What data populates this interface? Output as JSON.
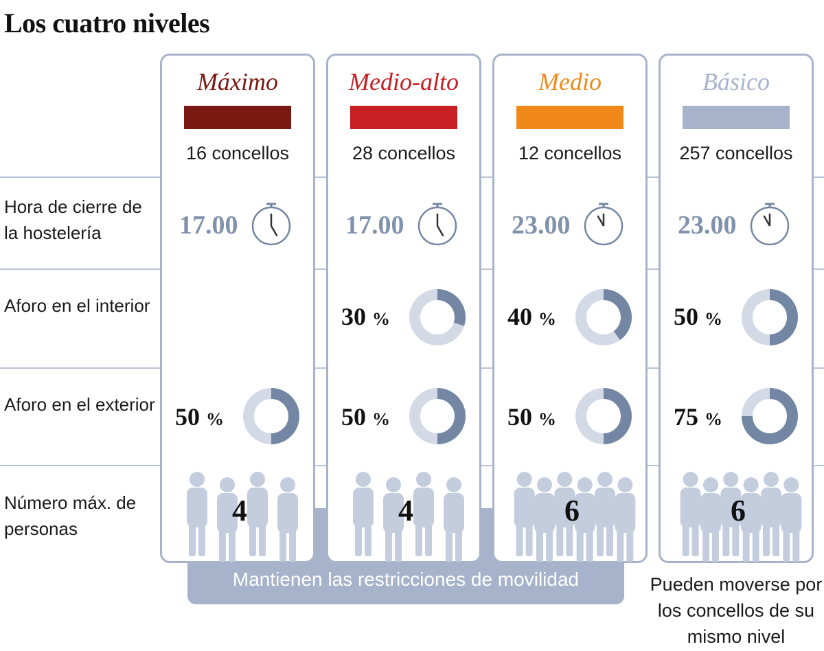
{
  "title": "Los cuatro niveles",
  "row_labels": {
    "hora": "Hora de cierre de la hostelería",
    "interior": "Aforo en el interior",
    "exterior": "Aforo en el exterior",
    "personas": "Número máx. de personas"
  },
  "mobility_note": "Mantienen las restricciones de movilidad",
  "free_note": "Pueden moverse por los concellos de su mismo nivel",
  "chart_data": {
    "type": "table",
    "levels": [
      {
        "name": "Máximo",
        "color": "#7a1812",
        "concellos": "16 concellos",
        "hora": "17.00",
        "interior": null,
        "exterior": 50,
        "personas": 4
      },
      {
        "name": "Medio-alto",
        "color": "#c81f24",
        "concellos": "28 concellos",
        "hora": "17.00",
        "interior": 30,
        "exterior": 50,
        "personas": 4
      },
      {
        "name": "Medio",
        "color": "#f0891a",
        "concellos": "12 concellos",
        "hora": "23.00",
        "interior": 40,
        "exterior": 50,
        "personas": 6
      },
      {
        "name": "Básico",
        "color": "#a7b3cb",
        "concellos": "257 concellos",
        "hora": "23.00",
        "interior": 50,
        "exterior": 75,
        "personas": 6
      }
    ],
    "percent_unit": "%",
    "colors": {
      "donut_fill": "#7386a3",
      "donut_track": "#d3dae6",
      "frame": "#a7b3cb",
      "silhouette": "#c3cddd"
    }
  }
}
